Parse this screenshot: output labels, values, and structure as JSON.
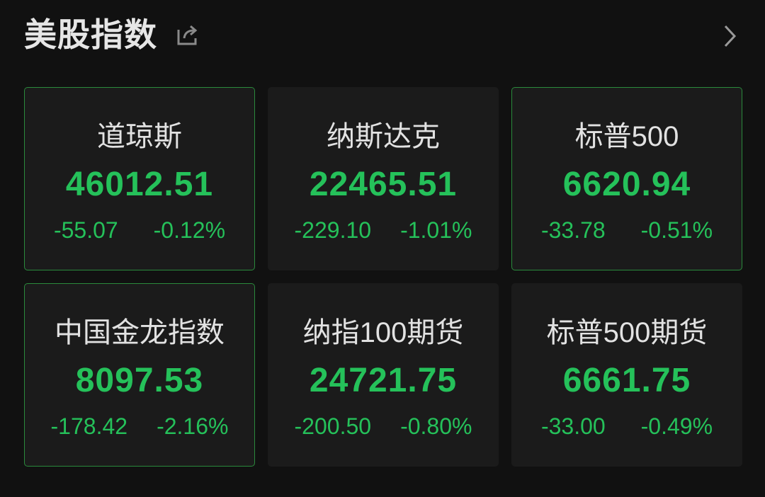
{
  "header": {
    "title": "美股指数",
    "share_icon": "share-icon",
    "more_icon": "chevron-right-icon"
  },
  "colors": {
    "background": "#111111",
    "card": "#1b1b1b",
    "down": "#25c15a",
    "highlight_border": "#2a8a3c",
    "text": "#e2e2e2"
  },
  "cards": [
    {
      "name": "道琼斯",
      "value": "46012.51",
      "change": "-55.07",
      "percent": "-0.12%",
      "highlighted": true
    },
    {
      "name": "纳斯达克",
      "value": "22465.51",
      "change": "-229.10",
      "percent": "-1.01%",
      "highlighted": false
    },
    {
      "name": "标普500",
      "value": "6620.94",
      "change": "-33.78",
      "percent": "-0.51%",
      "highlighted": true
    },
    {
      "name": "中国金龙指数",
      "value": "8097.53",
      "change": "-178.42",
      "percent": "-2.16%",
      "highlighted": true
    },
    {
      "name": "纳指100期货",
      "value": "24721.75",
      "change": "-200.50",
      "percent": "-0.80%",
      "highlighted": false
    },
    {
      "name": "标普500期货",
      "value": "6661.75",
      "change": "-33.00",
      "percent": "-0.49%",
      "highlighted": false
    }
  ]
}
